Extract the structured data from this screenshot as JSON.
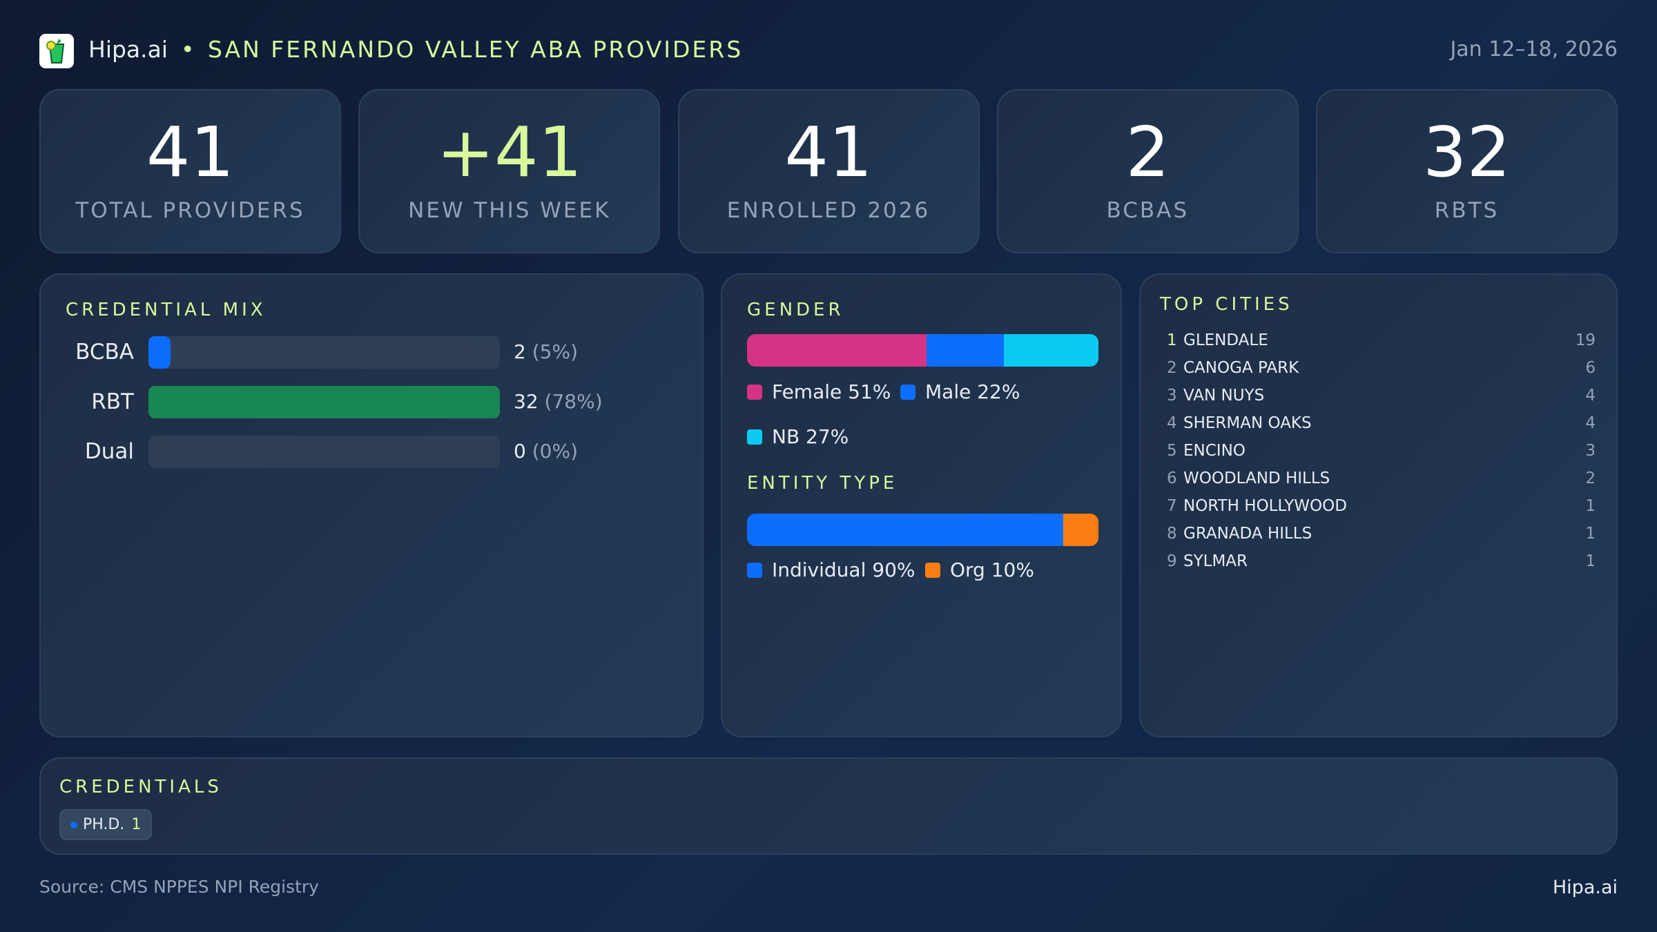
{
  "header": {
    "brand": "Hipa.ai",
    "separator": "•",
    "title": "SAN FERNANDO VALLEY ABA PROVIDERS",
    "date_range": "Jan 12–18, 2026",
    "logo_icon": "cocktail-glass-icon"
  },
  "kpis": [
    {
      "value": "41",
      "label": "TOTAL PROVIDERS",
      "color": "#ffffff"
    },
    {
      "value": "+41",
      "label": "NEW THIS WEEK",
      "color": "#d9f99d"
    },
    {
      "value": "41",
      "label": "ENROLLED 2026",
      "color": "#ffffff"
    },
    {
      "value": "2",
      "label": "BCBAS",
      "color": "#ffffff"
    },
    {
      "value": "32",
      "label": "RBTS",
      "color": "#ffffff"
    }
  ],
  "credential_mix": {
    "title": "CREDENTIAL MIX",
    "rows": [
      {
        "label": "BCBA",
        "count": "2",
        "pct": "(5%)",
        "value": 2,
        "color": "#0d6efd"
      },
      {
        "label": "RBT",
        "count": "32",
        "pct": "(78%)",
        "value": 32,
        "color": "#198754"
      },
      {
        "label": "Dual",
        "count": "0",
        "pct": "(0%)",
        "value": 0,
        "color": "#6f42c1"
      }
    ]
  },
  "gender": {
    "title": "GENDER",
    "segments": [
      {
        "label": "Female 51%",
        "value": 51,
        "color": "#d63384"
      },
      {
        "label": "Male 22%",
        "value": 22,
        "color": "#0d6efd"
      },
      {
        "label": "NB 27%",
        "value": 27,
        "color": "#0dcaf0"
      }
    ]
  },
  "entity_type": {
    "title": "ENTITY TYPE",
    "segments": [
      {
        "label": "Individual 90%",
        "value": 90,
        "color": "#0d6efd"
      },
      {
        "label": "Org 10%",
        "value": 10,
        "color": "#fd7e14"
      }
    ]
  },
  "top_cities": {
    "title": "TOP CITIES",
    "items": [
      {
        "rank": "1",
        "name": "GLENDALE",
        "count": "19"
      },
      {
        "rank": "2",
        "name": "CANOGA PARK",
        "count": "6"
      },
      {
        "rank": "3",
        "name": "VAN NUYS",
        "count": "4"
      },
      {
        "rank": "4",
        "name": "SHERMAN OAKS",
        "count": "4"
      },
      {
        "rank": "5",
        "name": "ENCINO",
        "count": "3"
      },
      {
        "rank": "6",
        "name": "WOODLAND HILLS",
        "count": "2"
      },
      {
        "rank": "7",
        "name": "NORTH HOLLYWOOD",
        "count": "1"
      },
      {
        "rank": "8",
        "name": "GRANADA HILLS",
        "count": "1"
      },
      {
        "rank": "9",
        "name": "SYLMAR",
        "count": "1"
      }
    ]
  },
  "credentials": {
    "title": "CREDENTIALS",
    "chips": [
      {
        "label": "PH.D.",
        "count": "1",
        "color": "#0d6efd"
      }
    ]
  },
  "footer": {
    "source": "Source: CMS NPPES NPI Registry",
    "brand": "Hipa.ai"
  },
  "colors": {
    "accent": "#d9f99d",
    "background": "#0f1d33"
  }
}
